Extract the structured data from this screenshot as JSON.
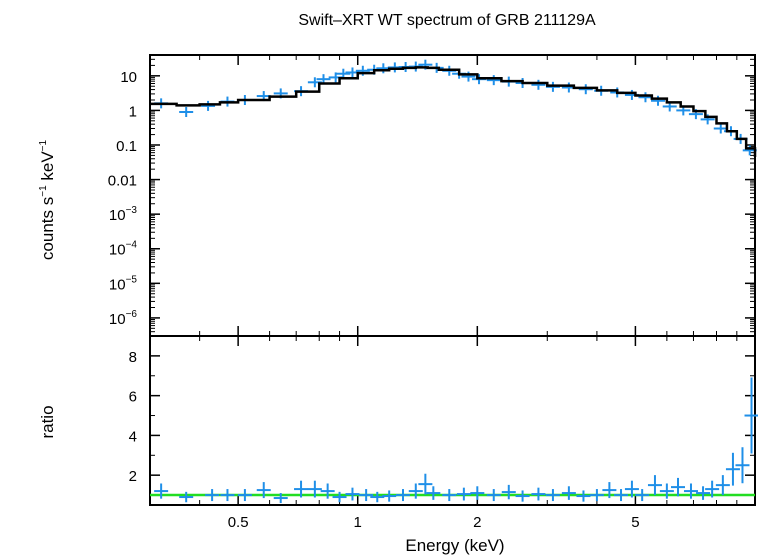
{
  "chart_data": {
    "title": "Swift–XRT WT spectrum of GRB 211129A",
    "xlabel": "Energy (keV)",
    "xscale": "log",
    "xlim": [
      0.3,
      10
    ],
    "x_tick_labels": [
      "0.5",
      "1",
      "2",
      "5"
    ],
    "x_tick_values": [
      0.5,
      1,
      2,
      5
    ],
    "panels": [
      {
        "name": "spectrum",
        "type": "scatter",
        "yscale": "log",
        "ylabel": "counts s⁻¹ keV⁻¹",
        "ylim": [
          3e-07,
          40
        ],
        "y_tick_labels": [
          {
            "base": "10",
            "sup": "",
            "value": 10
          },
          {
            "base": "1",
            "sup": "",
            "value": 1
          },
          {
            "base": "0.1",
            "sup": "",
            "value": 0.1
          },
          {
            "base": "0.01",
            "sup": "",
            "value": 0.01
          },
          {
            "base": "10",
            "sup": "−3",
            "value": 0.001
          },
          {
            "base": "10",
            "sup": "−4",
            "value": 0.0001
          },
          {
            "base": "10",
            "sup": "−5",
            "value": 1e-05
          },
          {
            "base": "10",
            "sup": "−6",
            "value": 1e-06
          }
        ],
        "data_color": "#1f8fe8",
        "model_color": "#000000",
        "data": [
          [
            0.32,
            1.6
          ],
          [
            0.37,
            0.9
          ],
          [
            0.42,
            1.35
          ],
          [
            0.47,
            1.8
          ],
          [
            0.52,
            2.0
          ],
          [
            0.58,
            2.6
          ],
          [
            0.64,
            3.1
          ],
          [
            0.72,
            3.6
          ],
          [
            0.78,
            6.5
          ],
          [
            0.82,
            8.0
          ],
          [
            0.88,
            9.0
          ],
          [
            0.92,
            11.5
          ],
          [
            0.97,
            12.5
          ],
          [
            1.03,
            14.0
          ],
          [
            1.1,
            15.0
          ],
          [
            1.16,
            16.5
          ],
          [
            1.24,
            17.5
          ],
          [
            1.32,
            18.0
          ],
          [
            1.4,
            18.5
          ],
          [
            1.48,
            21.0
          ],
          [
            1.58,
            17.0
          ],
          [
            1.7,
            14.0
          ],
          [
            1.8,
            11.5
          ],
          [
            1.9,
            9.5
          ],
          [
            2.02,
            8.0
          ],
          [
            2.2,
            7.5
          ],
          [
            2.4,
            6.8
          ],
          [
            2.6,
            6.2
          ],
          [
            2.85,
            5.5
          ],
          [
            3.1,
            4.8
          ],
          [
            3.4,
            4.6
          ],
          [
            3.75,
            4.1
          ],
          [
            4.1,
            3.7
          ],
          [
            4.5,
            3.3
          ],
          [
            4.9,
            2.8
          ],
          [
            5.3,
            2.4
          ],
          [
            5.7,
            1.9
          ],
          [
            6.1,
            1.3
          ],
          [
            6.6,
            1.0
          ],
          [
            7.1,
            0.78
          ],
          [
            7.6,
            0.55
          ],
          [
            8.2,
            0.3
          ],
          [
            8.7,
            0.25
          ],
          [
            9.2,
            0.15
          ],
          [
            9.7,
            0.07
          ]
        ],
        "model": [
          [
            0.3,
            1.55
          ],
          [
            0.35,
            1.4
          ],
          [
            0.4,
            1.5
          ],
          [
            0.45,
            1.7
          ],
          [
            0.5,
            2.0
          ],
          [
            0.6,
            2.5
          ],
          [
            0.7,
            3.5
          ],
          [
            0.8,
            6.0
          ],
          [
            0.9,
            8.5
          ],
          [
            1.0,
            12.0
          ],
          [
            1.1,
            14.5
          ],
          [
            1.2,
            16.0
          ],
          [
            1.3,
            17.0
          ],
          [
            1.4,
            17.5
          ],
          [
            1.5,
            17.0
          ],
          [
            1.6,
            15.0
          ],
          [
            1.8,
            11.0
          ],
          [
            2.0,
            8.5
          ],
          [
            2.3,
            7.0
          ],
          [
            2.6,
            6.2
          ],
          [
            3.0,
            5.2
          ],
          [
            3.5,
            4.5
          ],
          [
            4.0,
            3.8
          ],
          [
            4.5,
            3.2
          ],
          [
            5.0,
            2.7
          ],
          [
            5.5,
            2.2
          ],
          [
            6.0,
            1.7
          ],
          [
            6.5,
            1.3
          ],
          [
            7.0,
            0.95
          ],
          [
            7.5,
            0.65
          ],
          [
            8.0,
            0.42
          ],
          [
            8.5,
            0.25
          ],
          [
            9.0,
            0.15
          ],
          [
            9.5,
            0.08
          ],
          [
            10.0,
            0.045
          ]
        ]
      },
      {
        "name": "ratio",
        "type": "scatter",
        "yscale": "linear",
        "ylabel": "ratio",
        "ylim": [
          0.5,
          9
        ],
        "y_tick_labels": [
          "2",
          "4",
          "6",
          "8"
        ],
        "y_tick_values": [
          2,
          4,
          6,
          8
        ],
        "data_color": "#1f8fe8",
        "reference_line": {
          "y": 1,
          "color": "#22dd22"
        },
        "data": [
          [
            0.32,
            1.2
          ],
          [
            0.37,
            0.9
          ],
          [
            0.43,
            1.0
          ],
          [
            0.47,
            1.0
          ],
          [
            0.52,
            1.0
          ],
          [
            0.58,
            1.25
          ],
          [
            0.64,
            0.85
          ],
          [
            0.72,
            1.3
          ],
          [
            0.78,
            1.3
          ],
          [
            0.84,
            1.2
          ],
          [
            0.9,
            0.9
          ],
          [
            0.97,
            1.05
          ],
          [
            1.05,
            1.0
          ],
          [
            1.12,
            0.9
          ],
          [
            1.2,
            0.95
          ],
          [
            1.3,
            1.0
          ],
          [
            1.4,
            1.2
          ],
          [
            1.48,
            1.55
          ],
          [
            1.55,
            1.1
          ],
          [
            1.7,
            1.0
          ],
          [
            1.85,
            1.05
          ],
          [
            2.0,
            1.1
          ],
          [
            2.2,
            1.0
          ],
          [
            2.4,
            1.15
          ],
          [
            2.6,
            0.95
          ],
          [
            2.85,
            1.05
          ],
          [
            3.1,
            1.0
          ],
          [
            3.4,
            1.1
          ],
          [
            3.7,
            0.95
          ],
          [
            4.0,
            1.0
          ],
          [
            4.3,
            1.25
          ],
          [
            4.6,
            1.0
          ],
          [
            4.9,
            1.3
          ],
          [
            5.2,
            1.0
          ],
          [
            5.6,
            1.5
          ],
          [
            6.0,
            1.2
          ],
          [
            6.4,
            1.4
          ],
          [
            6.9,
            1.2
          ],
          [
            7.4,
            1.1
          ],
          [
            7.8,
            1.3
          ],
          [
            8.3,
            1.5
          ],
          [
            8.8,
            2.3
          ],
          [
            9.3,
            2.5
          ],
          [
            9.8,
            5.0
          ]
        ]
      }
    ]
  }
}
